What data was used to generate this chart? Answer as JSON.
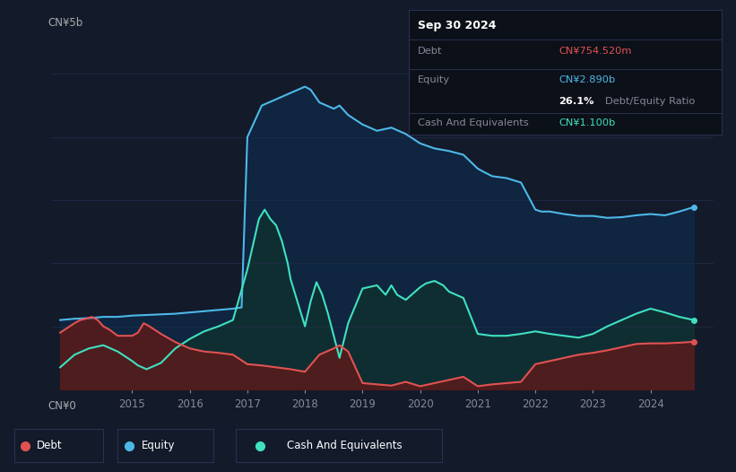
{
  "background_color": "#131a2a",
  "plot_bg_color": "#131a2a",
  "grid_color": "#1e2d45",
  "debt_color": "#e05252",
  "equity_color": "#4db8e8",
  "cash_color": "#40e0c0",
  "debt_fill": "#5a1a1a",
  "equity_fill": "#0f2540",
  "cash_fill": "#0f3030",
  "ylabel_top": "CN¥5b",
  "ylabel_bottom": "CN¥0",
  "info_box": {
    "date": "Sep 30 2024",
    "debt_label": "Debt",
    "debt_value": "CN¥754.520m",
    "equity_label": "Equity",
    "equity_value": "CN¥2.890b",
    "ratio_value": "26.1%",
    "ratio_label": "Debt/Equity Ratio",
    "cash_label": "Cash And Equivalents",
    "cash_value": "CN¥1.100b"
  },
  "equity_data_x": [
    2013.75,
    2014.0,
    2014.25,
    2014.5,
    2014.75,
    2015.0,
    2015.25,
    2015.5,
    2015.75,
    2016.0,
    2016.25,
    2016.5,
    2016.75,
    2016.9,
    2017.0,
    2017.25,
    2017.5,
    2017.75,
    2018.0,
    2018.1,
    2018.25,
    2018.5,
    2018.6,
    2018.75,
    2019.0,
    2019.25,
    2019.5,
    2019.75,
    2020.0,
    2020.25,
    2020.5,
    2020.75,
    2021.0,
    2021.1,
    2021.25,
    2021.5,
    2021.75,
    2022.0,
    2022.1,
    2022.25,
    2022.5,
    2022.75,
    2023.0,
    2023.25,
    2023.5,
    2023.75,
    2024.0,
    2024.25,
    2024.5,
    2024.75
  ],
  "equity_data_y": [
    1.1,
    1.12,
    1.13,
    1.15,
    1.15,
    1.17,
    1.18,
    1.19,
    1.2,
    1.22,
    1.24,
    1.26,
    1.28,
    1.3,
    4.0,
    4.5,
    4.6,
    4.7,
    4.8,
    4.75,
    4.55,
    4.45,
    4.5,
    4.35,
    4.2,
    4.1,
    4.15,
    4.05,
    3.9,
    3.82,
    3.78,
    3.72,
    3.5,
    3.45,
    3.38,
    3.35,
    3.28,
    2.85,
    2.82,
    2.82,
    2.78,
    2.75,
    2.75,
    2.72,
    2.73,
    2.76,
    2.78,
    2.76,
    2.82,
    2.89
  ],
  "debt_data_x": [
    2013.75,
    2014.0,
    2014.1,
    2014.2,
    2014.3,
    2014.4,
    2014.5,
    2014.6,
    2014.75,
    2015.0,
    2015.1,
    2015.2,
    2015.3,
    2015.5,
    2015.75,
    2016.0,
    2016.25,
    2016.5,
    2016.75,
    2017.0,
    2017.25,
    2017.5,
    2017.75,
    2018.0,
    2018.25,
    2018.5,
    2018.6,
    2018.75,
    2019.0,
    2019.25,
    2019.5,
    2019.75,
    2020.0,
    2020.25,
    2020.5,
    2020.75,
    2021.0,
    2021.25,
    2021.5,
    2021.75,
    2022.0,
    2022.25,
    2022.5,
    2022.75,
    2023.0,
    2023.25,
    2023.5,
    2023.75,
    2024.0,
    2024.25,
    2024.5,
    2024.75
  ],
  "debt_data_y": [
    0.9,
    1.05,
    1.1,
    1.12,
    1.15,
    1.1,
    1.0,
    0.95,
    0.85,
    0.85,
    0.9,
    1.05,
    1.0,
    0.88,
    0.75,
    0.65,
    0.6,
    0.58,
    0.55,
    0.4,
    0.38,
    0.35,
    0.32,
    0.28,
    0.55,
    0.65,
    0.7,
    0.6,
    0.1,
    0.08,
    0.06,
    0.12,
    0.05,
    0.1,
    0.15,
    0.2,
    0.05,
    0.08,
    0.1,
    0.12,
    0.4,
    0.45,
    0.5,
    0.55,
    0.58,
    0.62,
    0.67,
    0.72,
    0.73,
    0.73,
    0.74,
    0.755
  ],
  "cash_data_x": [
    2013.75,
    2014.0,
    2014.25,
    2014.5,
    2014.75,
    2015.0,
    2015.1,
    2015.25,
    2015.5,
    2015.75,
    2016.0,
    2016.25,
    2016.5,
    2016.75,
    2017.0,
    2017.1,
    2017.2,
    2017.3,
    2017.4,
    2017.5,
    2017.6,
    2017.7,
    2017.75,
    2017.9,
    2018.0,
    2018.1,
    2018.2,
    2018.3,
    2018.4,
    2018.5,
    2018.6,
    2018.75,
    2019.0,
    2019.25,
    2019.4,
    2019.5,
    2019.6,
    2019.75,
    2020.0,
    2020.1,
    2020.25,
    2020.4,
    2020.5,
    2020.75,
    2021.0,
    2021.25,
    2021.5,
    2021.75,
    2022.0,
    2022.25,
    2022.5,
    2022.75,
    2023.0,
    2023.25,
    2023.5,
    2023.75,
    2024.0,
    2024.25,
    2024.5,
    2024.75
  ],
  "cash_data_y": [
    0.35,
    0.55,
    0.65,
    0.7,
    0.6,
    0.45,
    0.38,
    0.32,
    0.42,
    0.65,
    0.8,
    0.92,
    1.0,
    1.1,
    1.9,
    2.3,
    2.7,
    2.85,
    2.7,
    2.6,
    2.35,
    2.0,
    1.75,
    1.3,
    1.0,
    1.4,
    1.7,
    1.5,
    1.2,
    0.85,
    0.5,
    1.05,
    1.6,
    1.65,
    1.5,
    1.65,
    1.5,
    1.42,
    1.62,
    1.68,
    1.72,
    1.65,
    1.55,
    1.45,
    0.88,
    0.85,
    0.85,
    0.88,
    0.92,
    0.88,
    0.85,
    0.82,
    0.88,
    1.0,
    1.1,
    1.2,
    1.28,
    1.22,
    1.15,
    1.1
  ],
  "ylim": [
    0,
    5.5
  ],
  "xlim": [
    2013.6,
    2025.1
  ],
  "x_ticks": [
    2015,
    2016,
    2017,
    2018,
    2019,
    2020,
    2021,
    2022,
    2023,
    2024
  ]
}
